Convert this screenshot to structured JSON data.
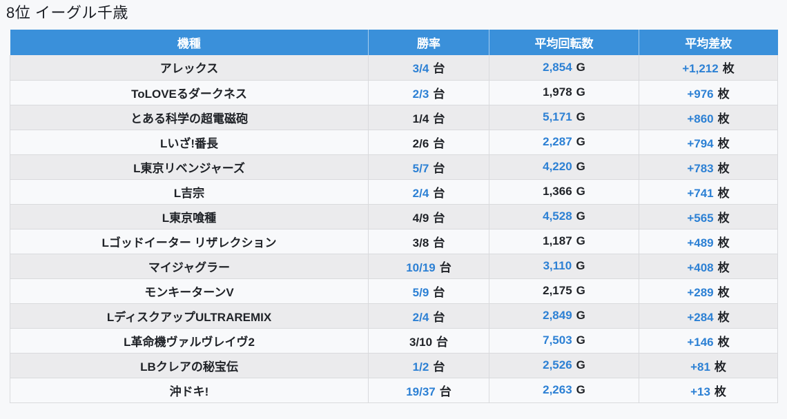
{
  "page_title": "8位 イーグル千歳",
  "colors": {
    "page_bg": "#f7f8fa",
    "header_bg": "#3a90da",
    "accent_blue": "#2c80d4",
    "text_dark": "#1f2227",
    "row_bg": "#f8f9fb",
    "row_alt_bg": "#ebebed",
    "border": "#d9dadd"
  },
  "table": {
    "columns": [
      {
        "key": "machine",
        "label": "機種"
      },
      {
        "key": "win_rate",
        "label": "勝率"
      },
      {
        "key": "avg_spins",
        "label": "平均回転数"
      },
      {
        "key": "avg_diff",
        "label": "平均差枚"
      }
    ],
    "units": {
      "win_rate": "台",
      "avg_spins": "G",
      "avg_diff": "枚"
    },
    "rows": [
      {
        "machine": "アレックス",
        "win_rate": "3/4",
        "win_rate_blue": true,
        "avg_spins": "2,854",
        "avg_spins_blue": true,
        "avg_diff": "+1,212",
        "avg_diff_blue": true
      },
      {
        "machine": "ToLOVEるダークネス",
        "win_rate": "2/3",
        "win_rate_blue": true,
        "avg_spins": "1,978",
        "avg_spins_blue": false,
        "avg_diff": "+976",
        "avg_diff_blue": true
      },
      {
        "machine": "とある科学の超電磁砲",
        "win_rate": "1/4",
        "win_rate_blue": false,
        "avg_spins": "5,171",
        "avg_spins_blue": true,
        "avg_diff": "+860",
        "avg_diff_blue": true
      },
      {
        "machine": "Lいざ!番長",
        "win_rate": "2/6",
        "win_rate_blue": false,
        "avg_spins": "2,287",
        "avg_spins_blue": true,
        "avg_diff": "+794",
        "avg_diff_blue": true
      },
      {
        "machine": "L東京リベンジャーズ",
        "win_rate": "5/7",
        "win_rate_blue": true,
        "avg_spins": "4,220",
        "avg_spins_blue": true,
        "avg_diff": "+783",
        "avg_diff_blue": true
      },
      {
        "machine": "L吉宗",
        "win_rate": "2/4",
        "win_rate_blue": true,
        "avg_spins": "1,366",
        "avg_spins_blue": false,
        "avg_diff": "+741",
        "avg_diff_blue": true
      },
      {
        "machine": "L東京喰種",
        "win_rate": "4/9",
        "win_rate_blue": false,
        "avg_spins": "4,528",
        "avg_spins_blue": true,
        "avg_diff": "+565",
        "avg_diff_blue": true
      },
      {
        "machine": "Lゴッドイーター リザレクション",
        "win_rate": "3/8",
        "win_rate_blue": false,
        "avg_spins": "1,187",
        "avg_spins_blue": false,
        "avg_diff": "+489",
        "avg_diff_blue": true
      },
      {
        "machine": "マイジャグラー",
        "win_rate": "10/19",
        "win_rate_blue": true,
        "avg_spins": "3,110",
        "avg_spins_blue": true,
        "avg_diff": "+408",
        "avg_diff_blue": true
      },
      {
        "machine": "モンキーターンV",
        "win_rate": "5/9",
        "win_rate_blue": true,
        "avg_spins": "2,175",
        "avg_spins_blue": false,
        "avg_diff": "+289",
        "avg_diff_blue": true
      },
      {
        "machine": "LディスクアップULTRAREMIX",
        "win_rate": "2/4",
        "win_rate_blue": true,
        "avg_spins": "2,849",
        "avg_spins_blue": true,
        "avg_diff": "+284",
        "avg_diff_blue": true
      },
      {
        "machine": "L革命機ヴァルヴレイヴ2",
        "win_rate": "3/10",
        "win_rate_blue": false,
        "avg_spins": "7,503",
        "avg_spins_blue": true,
        "avg_diff": "+146",
        "avg_diff_blue": true
      },
      {
        "machine": "LBクレアの秘宝伝",
        "win_rate": "1/2",
        "win_rate_blue": true,
        "avg_spins": "2,526",
        "avg_spins_blue": true,
        "avg_diff": "+81",
        "avg_diff_blue": true
      },
      {
        "machine": "沖ドキ!",
        "win_rate": "19/37",
        "win_rate_blue": true,
        "avg_spins": "2,263",
        "avg_spins_blue": true,
        "avg_diff": "+13",
        "avg_diff_blue": true
      }
    ]
  }
}
